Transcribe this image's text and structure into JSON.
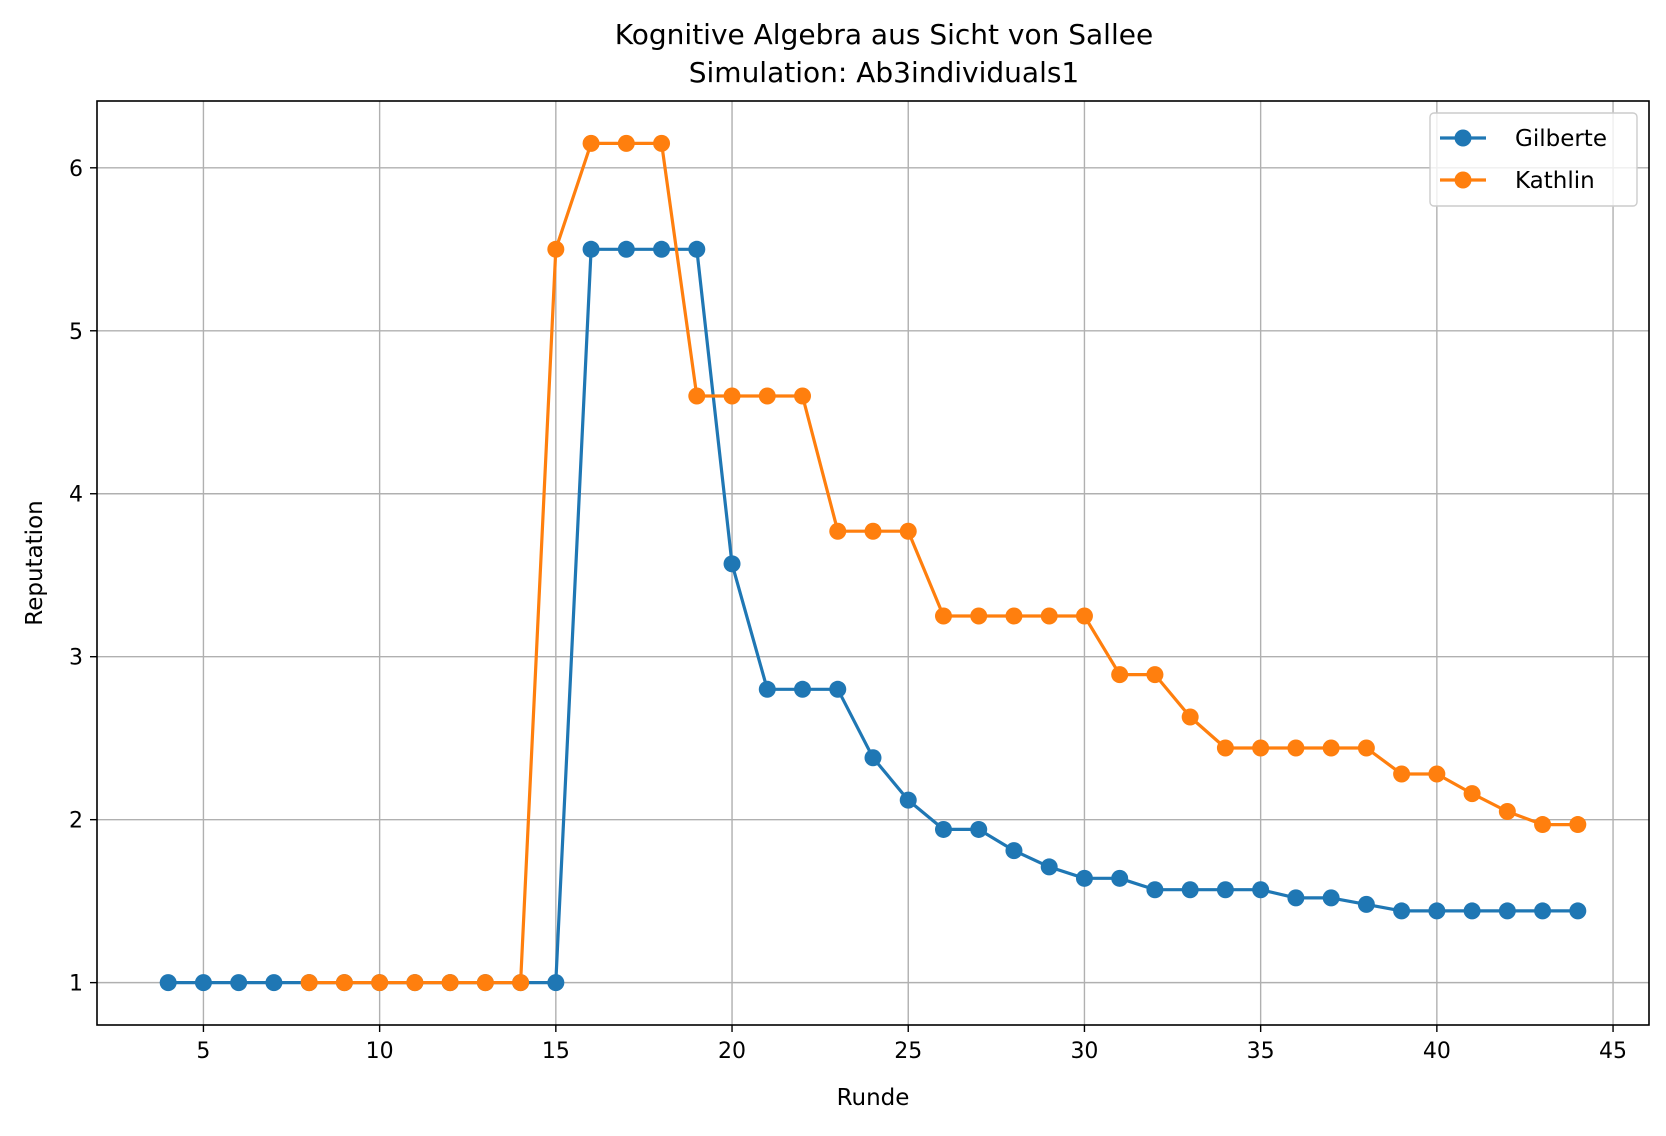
{
  "chart_data": {
    "type": "line",
    "title": "Kognitive Algebra aus Sicht von Sallee",
    "subtitle": "Simulation: Ab3individuals1",
    "xlabel": "Runde",
    "ylabel": "Reputation",
    "xlim": [
      1.98,
      46.02
    ],
    "ylim": [
      0.74,
      6.41
    ],
    "xticks": [
      5,
      10,
      15,
      20,
      25,
      30,
      35,
      40,
      45
    ],
    "yticks": [
      1,
      2,
      3,
      4,
      5,
      6
    ],
    "grid": true,
    "legend_position": "top-right",
    "series": [
      {
        "name": "Gilberte",
        "color": "#1f77b4",
        "x": [
          4,
          5,
          6,
          7,
          8,
          9,
          10,
          11,
          12,
          13,
          14,
          15,
          16,
          17,
          18,
          19,
          20,
          21,
          22,
          23,
          24,
          25,
          26,
          27,
          28,
          29,
          30,
          31,
          32,
          33,
          34,
          35,
          36,
          37,
          38,
          39,
          40,
          41,
          42,
          43,
          44
        ],
        "y": [
          1,
          1,
          1,
          1,
          1,
          1,
          1,
          1,
          1,
          1,
          1,
          1,
          5.5,
          5.5,
          5.5,
          5.5,
          3.57,
          2.8,
          2.8,
          2.8,
          2.38,
          2.12,
          1.94,
          1.94,
          1.81,
          1.71,
          1.64,
          1.64,
          1.57,
          1.57,
          1.57,
          1.57,
          1.52,
          1.52,
          1.48,
          1.44,
          1.44,
          1.44,
          1.44,
          1.44,
          1.44
        ]
      },
      {
        "name": "Kathlin",
        "color": "#ff7f0e",
        "x": [
          8,
          9,
          10,
          11,
          12,
          13,
          14,
          15,
          16,
          17,
          18,
          19,
          20,
          21,
          22,
          23,
          24,
          25,
          26,
          27,
          28,
          29,
          30,
          31,
          32,
          33,
          34,
          35,
          36,
          37,
          38,
          39,
          40,
          41,
          42,
          43,
          44
        ],
        "y": [
          1,
          1,
          1,
          1,
          1,
          1,
          1,
          5.5,
          6.15,
          6.15,
          6.15,
          4.6,
          4.6,
          4.6,
          4.6,
          3.77,
          3.77,
          3.77,
          3.25,
          3.25,
          3.25,
          3.25,
          3.25,
          2.89,
          2.89,
          2.63,
          2.44,
          2.44,
          2.44,
          2.44,
          2.44,
          2.28,
          2.28,
          2.16,
          2.05,
          1.97,
          1.97
        ]
      }
    ]
  }
}
